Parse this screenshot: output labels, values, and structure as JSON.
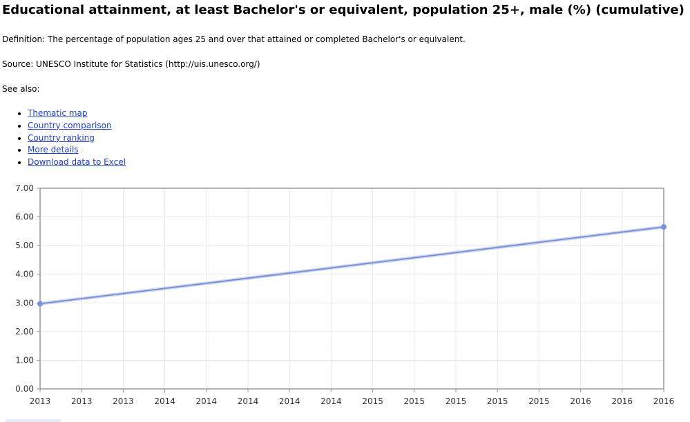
{
  "header": {
    "title": "Educational attainment, at least Bachelor's or equivalent, population 25+, male (%) (cumulative)"
  },
  "definition": "Definition: The percentage of population ages 25 and over that attained or completed Bachelor's or equivalent.",
  "source": "Source: UNESCO Institute for Statistics (http://uis.unesco.org/)",
  "see_also": "See also:",
  "links": [
    {
      "label": "Thematic map"
    },
    {
      "label": "Country comparison"
    },
    {
      "label": "Country ranking"
    },
    {
      "label": "More details"
    },
    {
      "label": "Download data to Excel"
    }
  ],
  "colors": {
    "series": "#7b93d6",
    "grid": "#e8e8e8",
    "axis": "#999999"
  },
  "chart_data": {
    "type": "line",
    "title": "",
    "xlabel": "",
    "ylabel": "",
    "ylim": [
      0,
      7
    ],
    "yticks": [
      "0.00",
      "1.00",
      "2.00",
      "3.00",
      "4.00",
      "5.00",
      "6.00",
      "7.00"
    ],
    "xticks": [
      "2013",
      "2013",
      "2013",
      "2014",
      "2014",
      "2014",
      "2014",
      "2014",
      "2015",
      "2015",
      "2015",
      "2015",
      "2015",
      "2016",
      "2016",
      "2016"
    ],
    "grid": true,
    "legend": "none",
    "series": [
      {
        "points": [
          {
            "x": "2013",
            "y": 2.97
          },
          {
            "x": "2016",
            "y": 5.65
          }
        ]
      }
    ]
  }
}
